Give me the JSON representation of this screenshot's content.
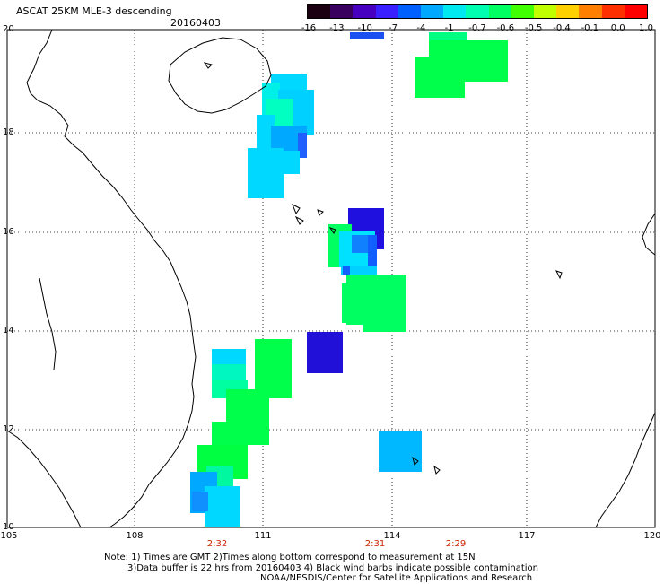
{
  "header": {
    "title": "ASCAT 25KM MLE-3 descending",
    "date": "20160403"
  },
  "colorbar": {
    "labels": [
      "-16",
      "-13",
      "-10",
      "-7",
      "-4",
      "-1",
      "-0.7",
      "-0.6",
      "-0.5",
      "-0.4",
      "-0.1",
      "0.0",
      "1.0"
    ],
    "colors": [
      "#1a0010",
      "#3a0060",
      "#4800c0",
      "#3a20ff",
      "#0060ff",
      "#00a8ff",
      "#00e8f0",
      "#00ffb0",
      "#00ff60",
      "#40ff00",
      "#c0ff00",
      "#ffd000",
      "#ff8000",
      "#ff3000",
      "#ff0000"
    ]
  },
  "axes": {
    "x_labels": [
      "105",
      "108",
      "111",
      "114",
      "117",
      "120"
    ],
    "y_labels": [
      "20",
      "18",
      "16",
      "14",
      "12",
      "10"
    ]
  },
  "pass_times": [
    "2:32",
    "2:31",
    "2:29"
  ],
  "notes": {
    "line1": "Note: 1) Times are GMT 2)Times along bottom correspond to measurement at 15N",
    "line2": "3)Data buffer is 22 hrs from 20160403 4) Black wind barbs indicate possible contamination",
    "line3": "NOAA/NESDIS/Center for Satellite Applications and Research"
  }
}
